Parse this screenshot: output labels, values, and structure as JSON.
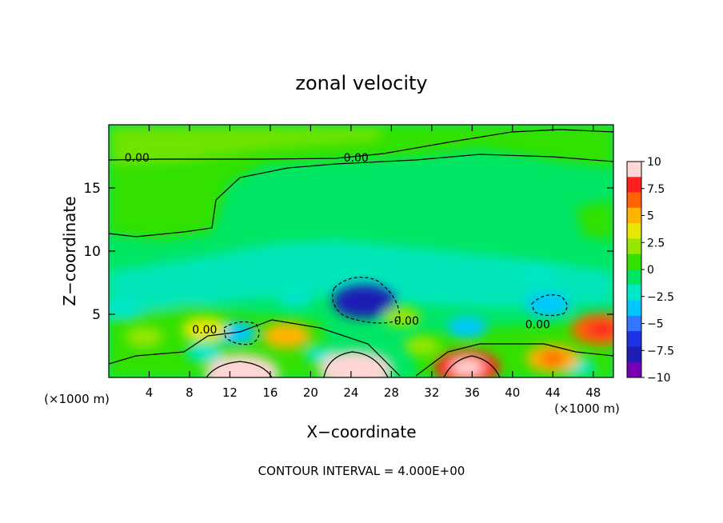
{
  "chart_data": {
    "type": "heatmap",
    "title": "zonal velocity",
    "xlabel": "X−coordinate",
    "ylabel": "Z−coordinate",
    "x_unit_left": "(×1000 m)",
    "x_unit_right": "(×1000 m)",
    "xlim": [
      0,
      50
    ],
    "ylim": [
      0,
      20
    ],
    "x_ticks": [
      4,
      8,
      12,
      16,
      20,
      24,
      28,
      32,
      36,
      40,
      44,
      48
    ],
    "y_ticks": [
      5,
      10,
      15
    ],
    "colorbar": {
      "ticks": [
        "10",
        "7.5",
        "5",
        "2.5",
        "0",
        "−2.5",
        "−5",
        "−7.5",
        "−10"
      ],
      "range": [
        -10,
        10
      ],
      "colors": [
        "#ffd5d5",
        "#ff2020",
        "#ff6400",
        "#ffb400",
        "#e6e600",
        "#96e600",
        "#32e100",
        "#00e664",
        "#00e6c8",
        "#00c8ff",
        "#3278ff",
        "#1e32e6",
        "#1e1eb4",
        "#7800b4"
      ]
    },
    "contour_labels": [
      {
        "text": "0.00",
        "x": 2.8,
        "z": 17.4
      },
      {
        "text": "0.00",
        "x": 24.5,
        "z": 17.4
      },
      {
        "text": "0.00",
        "x": 42.5,
        "z": 4.2
      },
      {
        "text": "0.00",
        "x": 9.5,
        "z": 3.8
      },
      {
        "text": "0.00",
        "x": 29.5,
        "z": 4.5
      }
    ],
    "features": [
      {
        "kind": "min",
        "x": 25.3,
        "z": 6.0,
        "u": -8.0
      },
      {
        "kind": "min",
        "x": 43.5,
        "z": 5.8,
        "u": -4.5
      },
      {
        "kind": "min",
        "x": 12.5,
        "z": 3.5,
        "u": -4.0
      },
      {
        "kind": "min",
        "x": 35.5,
        "z": 4.0,
        "u": -3.5
      },
      {
        "kind": "min",
        "x": 9.5,
        "z": 2.0,
        "u": -3.0
      },
      {
        "kind": "min",
        "x": 42.5,
        "z": 8.0,
        "u": -2.5
      },
      {
        "kind": "min",
        "x": 1.5,
        "z": 5.5,
        "u": -2.5
      },
      {
        "kind": "min",
        "x": 18.5,
        "z": 6.3,
        "u": -2.5
      },
      {
        "kind": "min",
        "x": 46.5,
        "z": 0.8,
        "u": -2.5
      },
      {
        "kind": "min",
        "x": 21.0,
        "z": 1.8,
        "u": -2.0
      },
      {
        "kind": "max",
        "x": 13.2,
        "z": 0.3,
        "u": 10.0
      },
      {
        "kind": "max",
        "x": 24.5,
        "z": 0.6,
        "u": 10.0
      },
      {
        "kind": "max",
        "x": 35.5,
        "z": 0.8,
        "u": 8.5
      },
      {
        "kind": "max",
        "x": 48.8,
        "z": 3.8,
        "u": 7.5
      },
      {
        "kind": "max",
        "x": 44.0,
        "z": 1.5,
        "u": 6.0
      },
      {
        "kind": "max",
        "x": 17.6,
        "z": 3.3,
        "u": 5.0
      },
      {
        "kind": "max",
        "x": 9.5,
        "z": 3.8,
        "u": 4.5
      },
      {
        "kind": "max",
        "x": 3.5,
        "z": 3.2,
        "u": 3.0
      },
      {
        "kind": "max",
        "x": 29.0,
        "z": 4.8,
        "u": 3.0
      },
      {
        "kind": "max",
        "x": 31.0,
        "z": 2.5,
        "u": 2.5
      }
    ],
    "footer": "CONTOUR INTERVAL = 4.000E+00"
  }
}
